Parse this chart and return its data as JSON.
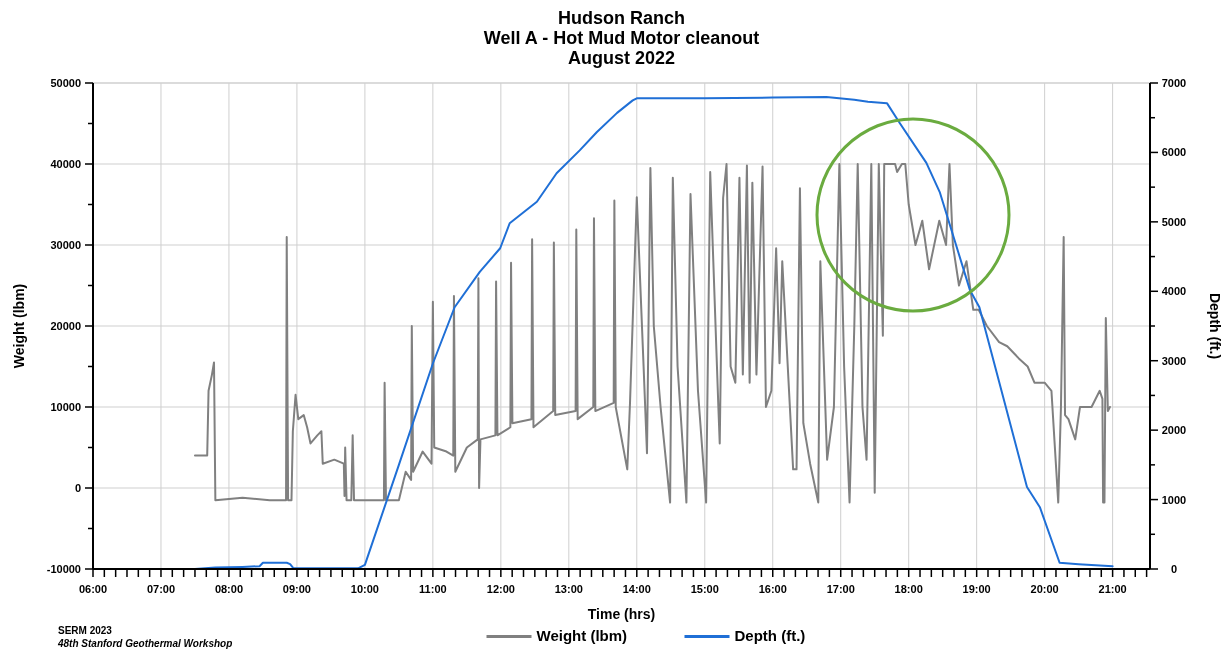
{
  "chart_data": {
    "type": "line",
    "title": "Hudson Ranch\nWell A - Hot Mud Motor cleanout\nAugust 2022",
    "xlabel": "Time (hrs)",
    "ylabel": "Weight (lbm)",
    "y2label": "Depth (ft.)",
    "annotations": [
      "SERM 2023",
      "48th Stanford Geothermal Workshop"
    ],
    "xlim": [
      6,
      21.55
    ],
    "xticks": [
      {
        "value": 6,
        "label": "06:00"
      },
      {
        "value": 6.1667,
        "label": null
      },
      {
        "value": 6.3333,
        "label": null
      },
      {
        "value": 6.5,
        "label": null
      },
      {
        "value": 6.6667,
        "label": null
      },
      {
        "value": 6.8333,
        "label": null
      },
      {
        "value": 7,
        "label": "07:00"
      },
      {
        "value": 7.1667,
        "label": null
      },
      {
        "value": 7.3333,
        "label": null
      },
      {
        "value": 7.5,
        "label": null
      },
      {
        "value": 7.6667,
        "label": null
      },
      {
        "value": 7.8333,
        "label": null
      },
      {
        "value": 8,
        "label": "08:00"
      },
      {
        "value": 8.1667,
        "label": null
      },
      {
        "value": 8.3333,
        "label": null
      },
      {
        "value": 8.5,
        "label": null
      },
      {
        "value": 8.6667,
        "label": null
      },
      {
        "value": 8.8333,
        "label": null
      },
      {
        "value": 9,
        "label": "09:00"
      },
      {
        "value": 9.1667,
        "label": null
      },
      {
        "value": 9.3333,
        "label": null
      },
      {
        "value": 9.5,
        "label": null
      },
      {
        "value": 9.6667,
        "label": null
      },
      {
        "value": 9.8333,
        "label": null
      },
      {
        "value": 10,
        "label": "10:00"
      },
      {
        "value": 10.1667,
        "label": null
      },
      {
        "value": 10.3333,
        "label": null
      },
      {
        "value": 10.5,
        "label": null
      },
      {
        "value": 10.6667,
        "label": null
      },
      {
        "value": 10.8333,
        "label": null
      },
      {
        "value": 11,
        "label": "11:00"
      },
      {
        "value": 11.1667,
        "label": null
      },
      {
        "value": 11.3333,
        "label": null
      },
      {
        "value": 11.5,
        "label": null
      },
      {
        "value": 11.6667,
        "label": null
      },
      {
        "value": 11.8333,
        "label": null
      },
      {
        "value": 12,
        "label": "12:00"
      },
      {
        "value": 12.1667,
        "label": null
      },
      {
        "value": 12.3333,
        "label": null
      },
      {
        "value": 12.5,
        "label": null
      },
      {
        "value": 12.6667,
        "label": null
      },
      {
        "value": 12.8333,
        "label": null
      },
      {
        "value": 13,
        "label": "13:00"
      },
      {
        "value": 13.1667,
        "label": null
      },
      {
        "value": 13.3333,
        "label": null
      },
      {
        "value": 13.5,
        "label": null
      },
      {
        "value": 13.6667,
        "label": null
      },
      {
        "value": 13.8333,
        "label": null
      },
      {
        "value": 14,
        "label": "14:00"
      },
      {
        "value": 14.1667,
        "label": null
      },
      {
        "value": 14.3333,
        "label": null
      },
      {
        "value": 14.5,
        "label": null
      },
      {
        "value": 14.6667,
        "label": null
      },
      {
        "value": 14.8333,
        "label": null
      },
      {
        "value": 15,
        "label": "15:00"
      },
      {
        "value": 15.1667,
        "label": null
      },
      {
        "value": 15.3333,
        "label": null
      },
      {
        "value": 15.5,
        "label": null
      },
      {
        "value": 15.6667,
        "label": null
      },
      {
        "value": 15.8333,
        "label": null
      },
      {
        "value": 16,
        "label": "16:00"
      },
      {
        "value": 16.1667,
        "label": null
      },
      {
        "value": 16.3333,
        "label": null
      },
      {
        "value": 16.5,
        "label": null
      },
      {
        "value": 16.6667,
        "label": null
      },
      {
        "value": 16.8333,
        "label": null
      },
      {
        "value": 17,
        "label": "17:00"
      },
      {
        "value": 17.1667,
        "label": null
      },
      {
        "value": 17.3333,
        "label": null
      },
      {
        "value": 17.5,
        "label": null
      },
      {
        "value": 17.6667,
        "label": null
      },
      {
        "value": 17.8333,
        "label": null
      },
      {
        "value": 18,
        "label": "18:00"
      },
      {
        "value": 18.1667,
        "label": null
      },
      {
        "value": 18.3333,
        "label": null
      },
      {
        "value": 18.5,
        "label": null
      },
      {
        "value": 18.6667,
        "label": null
      },
      {
        "value": 18.8333,
        "label": null
      },
      {
        "value": 19,
        "label": "19:00"
      },
      {
        "value": 19.1667,
        "label": null
      },
      {
        "value": 19.3333,
        "label": null
      },
      {
        "value": 19.5,
        "label": null
      },
      {
        "value": 19.6667,
        "label": null
      },
      {
        "value": 19.8333,
        "label": null
      },
      {
        "value": 20,
        "label": "20:00"
      },
      {
        "value": 20.1667,
        "label": null
      },
      {
        "value": 20.3333,
        "label": null
      },
      {
        "value": 20.5,
        "label": null
      },
      {
        "value": 20.6667,
        "label": null
      },
      {
        "value": 20.8333,
        "label": null
      },
      {
        "value": 21,
        "label": "21:00"
      },
      {
        "value": 21.1667,
        "label": null
      },
      {
        "value": 21.3333,
        "label": null
      },
      {
        "value": 21.5,
        "label": null
      }
    ],
    "ylim": [
      -10000,
      50000
    ],
    "yticks": [
      -10000,
      {
        "value": -5000,
        "label": null
      },
      0,
      {
        "value": 5000,
        "label": null
      },
      10000,
      {
        "value": 15000,
        "label": null
      },
      20000,
      {
        "value": 25000,
        "label": null
      },
      30000,
      {
        "value": 35000,
        "label": null
      },
      40000,
      {
        "value": 45000,
        "label": null
      },
      50000
    ],
    "y2lim": [
      0,
      7000
    ],
    "y2ticks": [
      0,
      {
        "value": 500,
        "label": null
      },
      1000,
      {
        "value": 1500,
        "label": null
      },
      2000,
      {
        "value": 2500,
        "label": null
      },
      3000,
      {
        "value": 3500,
        "label": null
      },
      4000,
      {
        "value": 4500,
        "label": null
      },
      5000,
      {
        "value": 5500,
        "label": null
      },
      6000,
      {
        "value": 6500,
        "label": null
      },
      7000
    ],
    "grid": true,
    "legend": "bottom",
    "line_style": "solid",
    "marker": "none",
    "series": [
      {
        "name": "Weight (lbm)",
        "color": "#808080",
        "x": [
          7.5,
          7.68,
          7.7,
          7.75,
          7.78,
          7.8,
          8.2,
          8.6,
          8.84,
          8.85,
          8.87,
          8.92,
          8.94,
          8.98,
          9.02,
          9.1,
          9.15,
          9.2,
          9.3,
          9.36,
          9.38,
          9.55,
          9.69,
          9.7,
          9.71,
          9.73,
          9.8,
          9.82,
          9.84,
          10.1,
          10.28,
          10.29,
          10.31,
          10.5,
          10.6,
          10.68,
          10.69,
          10.71,
          10.85,
          10.98,
          11.0,
          11.02,
          11.2,
          11.3,
          11.31,
          11.33,
          11.5,
          11.66,
          11.67,
          11.68,
          11.7,
          11.92,
          11.93,
          11.95,
          12.14,
          12.15,
          12.17,
          12.45,
          12.46,
          12.48,
          12.77,
          12.78,
          12.8,
          13.1,
          13.11,
          13.13,
          13.36,
          13.37,
          13.39,
          13.66,
          13.67,
          13.69,
          13.86,
          13.9,
          14.0,
          14.1,
          14.15,
          14.2,
          14.25,
          14.35,
          14.49,
          14.53,
          14.6,
          14.73,
          14.79,
          14.9,
          15.02,
          15.08,
          15.2,
          15.22,
          15.27,
          15.32,
          15.38,
          15.45,
          15.51,
          15.56,
          15.62,
          15.66,
          15.7,
          15.76,
          15.85,
          15.9,
          15.98,
          16.05,
          16.1,
          16.14,
          16.3,
          16.35,
          16.4,
          16.45,
          16.55,
          16.67,
          16.7,
          16.8,
          16.9,
          16.98,
          17.05,
          17.13,
          17.2,
          17.25,
          17.32,
          17.38,
          17.45,
          17.5,
          17.56,
          17.62,
          17.64,
          17.8,
          17.83,
          17.9,
          17.95,
          18.0,
          18.1,
          18.2,
          18.3,
          18.45,
          18.55,
          18.6,
          18.65,
          18.74,
          18.85,
          18.95,
          19.03,
          19.15,
          19.33,
          19.45,
          19.62,
          19.75,
          19.85,
          20.0,
          20.1,
          20.2,
          20.24,
          20.28,
          20.3,
          20.35,
          20.45,
          20.52,
          20.69,
          20.81,
          20.85,
          20.86,
          20.88,
          20.9,
          20.93,
          20.96
        ],
        "values": [
          4000,
          4000,
          12000,
          14000,
          15500,
          -1500,
          -1200,
          -1500,
          -1500,
          31000,
          -1500,
          -1500,
          7000,
          11500,
          8500,
          9000,
          7500,
          5500,
          6500,
          7000,
          3000,
          3500,
          3000,
          -1000,
          5000,
          -1500,
          -1500,
          6500,
          -1500,
          -1500,
          -1500,
          13000,
          -1500,
          -1500,
          2000,
          1000,
          20000,
          2000,
          4500,
          3000,
          23000,
          5000,
          4500,
          4000,
          23700,
          2000,
          5000,
          6000,
          25900,
          0,
          6000,
          6500,
          25500,
          6500,
          7500,
          27800,
          8000,
          8500,
          30700,
          7500,
          9500,
          30300,
          9000,
          9500,
          31900,
          8500,
          10000,
          33300,
          9500,
          10500,
          35500,
          10000,
          2300,
          10500,
          35900,
          15000,
          4300,
          39500,
          20000,
          10000,
          -1800,
          38300,
          15000,
          -1800,
          36300,
          12000,
          -1800,
          39000,
          10000,
          5500,
          35800,
          40000,
          15000,
          13000,
          38300,
          14000,
          39800,
          13000,
          37700,
          14000,
          39700,
          10000,
          12000,
          29600,
          15400,
          28000,
          2300,
          2300,
          37000,
          8000,
          3000,
          -1800,
          28000,
          3500,
          10000,
          40000,
          15000,
          -1800,
          20000,
          40000,
          10000,
          3500,
          40000,
          -600,
          40000,
          18800,
          40000,
          40000,
          39000,
          40000,
          40000,
          35000,
          30000,
          33000,
          27000,
          33000,
          30000,
          40000,
          30000,
          25000,
          28000,
          22000,
          22000,
          20000,
          18000,
          17500,
          16000,
          15000,
          13000,
          13000,
          12000,
          -1800,
          10000,
          31000,
          9000,
          8500,
          6000,
          10000,
          10000,
          12000,
          11000,
          -1800,
          -1800,
          21000,
          9500,
          10000
        ]
      },
      {
        "name": "Depth (ft.)",
        "color": "#1f6fd6",
        "axis": "y2",
        "x": [
          7.5,
          7.8,
          8.2,
          8.45,
          8.5,
          8.85,
          8.9,
          8.95,
          9.9,
          10.0,
          10.5,
          11.0,
          11.32,
          11.69,
          11.99,
          12.13,
          12.53,
          12.82,
          13.16,
          13.41,
          13.71,
          13.94,
          14.0,
          15.0,
          16.0,
          16.79,
          17.2,
          17.4,
          17.68,
          17.87,
          18.26,
          18.46,
          18.9,
          19.04,
          19.74,
          19.93,
          20.22,
          20.5,
          21.0
        ],
        "values": [
          0,
          20,
          30,
          40,
          90,
          90,
          70,
          10,
          10,
          60,
          1500,
          2960,
          3770,
          4280,
          4620,
          4980,
          5290,
          5700,
          6030,
          6290,
          6570,
          6750,
          6780,
          6780,
          6790,
          6800,
          6760,
          6730,
          6710,
          6420,
          5850,
          5420,
          4020,
          3770,
          1180,
          890,
          90,
          70,
          40
        ]
      }
    ]
  }
}
